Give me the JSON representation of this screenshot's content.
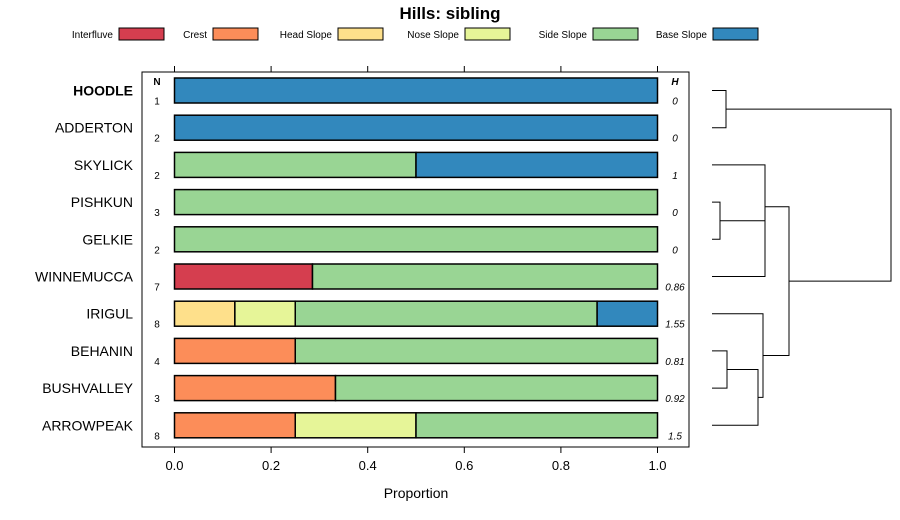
{
  "chart_data": {
    "type": "bar",
    "stacked": true,
    "orientation": "horizontal",
    "title": "Hills: sibling",
    "xlabel": "Proportion",
    "ylabel": "",
    "xlim": [
      0,
      1
    ],
    "x_ticks": [
      "0.0",
      "0.2",
      "0.4",
      "0.6",
      "0.8",
      "1.0"
    ],
    "n_header": "N",
    "h_header": "H",
    "highlight": "HOODLE",
    "legend": [
      {
        "name": "Interfluve",
        "color": "#d53e4f"
      },
      {
        "name": "Crest",
        "color": "#fc8d59"
      },
      {
        "name": "Head Slope",
        "color": "#fee08b"
      },
      {
        "name": "Nose Slope",
        "color": "#e6f598"
      },
      {
        "name": "Side Slope",
        "color": "#99d594"
      },
      {
        "name": "Base Slope",
        "color": "#3288bd"
      }
    ],
    "rows": [
      {
        "name": "HOODLE",
        "n": "1",
        "h": "0",
        "values": [
          0,
          0,
          0,
          0,
          0,
          1
        ]
      },
      {
        "name": "ADDERTON",
        "n": "2",
        "h": "0",
        "values": [
          0,
          0,
          0,
          0,
          0,
          1
        ]
      },
      {
        "name": "SKYLICK",
        "n": "2",
        "h": "1",
        "values": [
          0,
          0,
          0,
          0,
          0.5,
          0.5
        ]
      },
      {
        "name": "PISHKUN",
        "n": "3",
        "h": "0",
        "values": [
          0,
          0,
          0,
          0,
          1,
          0
        ]
      },
      {
        "name": "GELKIE",
        "n": "2",
        "h": "0",
        "values": [
          0,
          0,
          0,
          0,
          1,
          0
        ]
      },
      {
        "name": "WINNEMUCCA",
        "n": "7",
        "h": "0.86",
        "values": [
          0.2857,
          0,
          0,
          0,
          0.7143,
          0
        ]
      },
      {
        "name": "IRIGUL",
        "n": "8",
        "h": "1.55",
        "values": [
          0,
          0,
          0.125,
          0.125,
          0.625,
          0.125
        ]
      },
      {
        "name": "BEHANIN",
        "n": "4",
        "h": "0.81",
        "values": [
          0,
          0.25,
          0,
          0,
          0.75,
          0
        ]
      },
      {
        "name": "BUSHVALLEY",
        "n": "3",
        "h": "0.92",
        "values": [
          0,
          0.3333,
          0,
          0,
          0.6667,
          0
        ]
      },
      {
        "name": "ARROWPEAK",
        "n": "8",
        "h": "1.5",
        "values": [
          0,
          0.25,
          0,
          0.25,
          0.5,
          0
        ]
      }
    ]
  }
}
